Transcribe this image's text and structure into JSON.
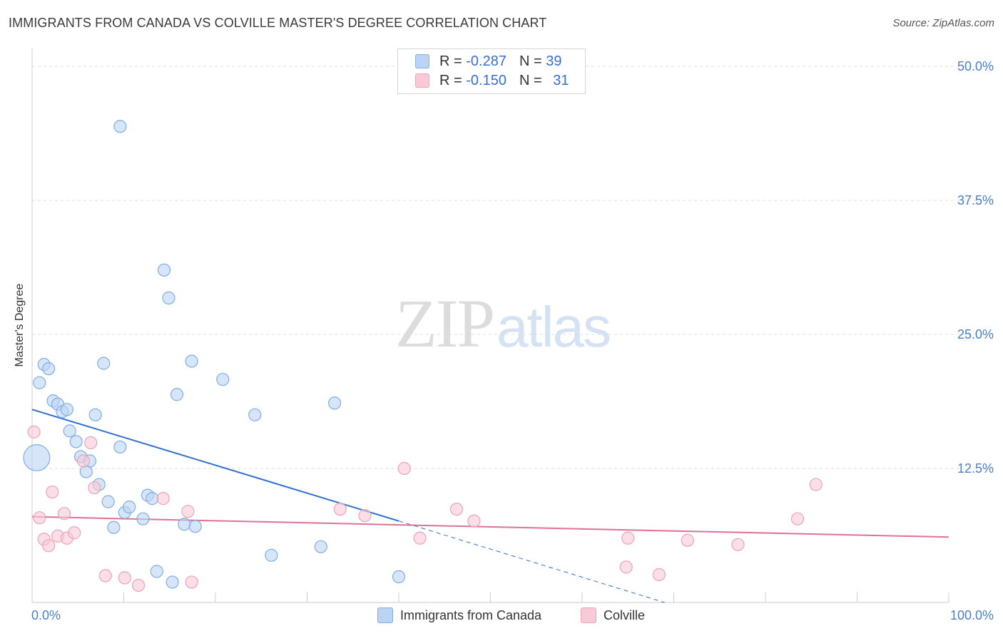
{
  "title": "IMMIGRANTS FROM CANADA VS COLVILLE MASTER'S DEGREE CORRELATION CHART",
  "source": "Source: ZipAtlas.com",
  "watermark": {
    "zip": "ZIP",
    "atlas": "atlas"
  },
  "colors": {
    "blue_fill": "#bcd4f3",
    "blue_stroke": "#7eaee3",
    "blue_line": "#2f6fcf",
    "pink_fill": "#f8c9d6",
    "pink_stroke": "#eea2b8",
    "pink_line": "#e0709a",
    "grid": "#dddddd",
    "axis_label": "#4a7fd0"
  },
  "legend": {
    "blue": {
      "r_label": "R = ",
      "r_value": "-0.287",
      "n_label": "N = ",
      "n_value": "39"
    },
    "pink": {
      "r_label": "R = ",
      "r_value": "-0.150",
      "n_label": "N = ",
      "n_value": "31"
    }
  },
  "bottom_legend": {
    "blue": "Immigrants from Canada",
    "pink": "Colville"
  },
  "chart_data": {
    "type": "scatter",
    "title": "IMMIGRANTS FROM CANADA VS COLVILLE MASTER'S DEGREE CORRELATION CHART",
    "xlabel": "",
    "ylabel": "Master's Degree",
    "xlim": [
      0,
      100
    ],
    "ylim": [
      0,
      50
    ],
    "x_tick_labels": [
      "0.0%",
      "100.0%"
    ],
    "y_ticks": [
      12.5,
      25.0,
      37.5,
      50.0
    ],
    "y_tick_labels": [
      "12.5%",
      "25.0%",
      "37.5%",
      "50.0%"
    ],
    "grid": true,
    "series": [
      {
        "name": "Immigrants from Canada",
        "color": "blue",
        "points": [
          {
            "x": 0.5,
            "y": 13.5,
            "size": 3
          },
          {
            "x": 0.8,
            "y": 20.5
          },
          {
            "x": 1.3,
            "y": 22.2
          },
          {
            "x": 1.8,
            "y": 21.8
          },
          {
            "x": 2.3,
            "y": 18.8
          },
          {
            "x": 2.8,
            "y": 18.5
          },
          {
            "x": 3.3,
            "y": 17.8
          },
          {
            "x": 3.8,
            "y": 18.0
          },
          {
            "x": 4.1,
            "y": 16.0
          },
          {
            "x": 4.8,
            "y": 15.0
          },
          {
            "x": 5.3,
            "y": 13.6
          },
          {
            "x": 5.9,
            "y": 12.2
          },
          {
            "x": 6.3,
            "y": 13.2
          },
          {
            "x": 6.9,
            "y": 17.5
          },
          {
            "x": 7.3,
            "y": 11.0
          },
          {
            "x": 7.8,
            "y": 22.3
          },
          {
            "x": 8.3,
            "y": 9.4
          },
          {
            "x": 8.9,
            "y": 7.0
          },
          {
            "x": 9.6,
            "y": 14.5
          },
          {
            "x": 10.1,
            "y": 8.4
          },
          {
            "x": 10.6,
            "y": 8.9
          },
          {
            "x": 9.6,
            "y": 44.4
          },
          {
            "x": 12.1,
            "y": 7.8
          },
          {
            "x": 12.6,
            "y": 10.0
          },
          {
            "x": 13.1,
            "y": 9.7
          },
          {
            "x": 13.6,
            "y": 2.9
          },
          {
            "x": 14.4,
            "y": 31.0
          },
          {
            "x": 14.9,
            "y": 28.4
          },
          {
            "x": 15.3,
            "y": 1.9
          },
          {
            "x": 15.8,
            "y": 19.4
          },
          {
            "x": 16.6,
            "y": 7.3
          },
          {
            "x": 17.4,
            "y": 22.5
          },
          {
            "x": 17.8,
            "y": 7.1
          },
          {
            "x": 20.8,
            "y": 20.8
          },
          {
            "x": 24.3,
            "y": 17.5
          },
          {
            "x": 26.1,
            "y": 4.4
          },
          {
            "x": 31.5,
            "y": 5.2
          },
          {
            "x": 33.0,
            "y": 18.6
          },
          {
            "x": 40.0,
            "y": 2.4
          }
        ],
        "trend": {
          "x0": 0,
          "y0": 18.0,
          "x1": 40.0,
          "y1": 7.6,
          "dashed_to_x": 69.0,
          "dashed_to_y": 0.0
        }
      },
      {
        "name": "Colville",
        "color": "pink",
        "points": [
          {
            "x": 0.2,
            "y": 15.9
          },
          {
            "x": 0.8,
            "y": 7.9
          },
          {
            "x": 1.3,
            "y": 5.9
          },
          {
            "x": 1.8,
            "y": 5.3
          },
          {
            "x": 2.2,
            "y": 10.3
          },
          {
            "x": 2.8,
            "y": 6.2
          },
          {
            "x": 3.5,
            "y": 8.3
          },
          {
            "x": 3.8,
            "y": 6.0
          },
          {
            "x": 4.6,
            "y": 6.5
          },
          {
            "x": 5.6,
            "y": 13.2
          },
          {
            "x": 6.4,
            "y": 14.9
          },
          {
            "x": 6.8,
            "y": 10.7
          },
          {
            "x": 8.0,
            "y": 2.5
          },
          {
            "x": 10.1,
            "y": 2.3
          },
          {
            "x": 11.6,
            "y": 1.6
          },
          {
            "x": 14.3,
            "y": 9.7
          },
          {
            "x": 17.0,
            "y": 8.5
          },
          {
            "x": 17.4,
            "y": 1.9
          },
          {
            "x": 33.6,
            "y": 8.7
          },
          {
            "x": 36.3,
            "y": 8.1
          },
          {
            "x": 40.6,
            "y": 12.5
          },
          {
            "x": 42.3,
            "y": 6.0
          },
          {
            "x": 46.3,
            "y": 8.7
          },
          {
            "x": 48.2,
            "y": 7.6
          },
          {
            "x": 64.8,
            "y": 3.3
          },
          {
            "x": 65.0,
            "y": 6.0
          },
          {
            "x": 68.4,
            "y": 2.6
          },
          {
            "x": 71.5,
            "y": 5.8
          },
          {
            "x": 77.0,
            "y": 5.4
          },
          {
            "x": 83.5,
            "y": 7.8
          },
          {
            "x": 85.5,
            "y": 11.0
          }
        ],
        "trend": {
          "x0": 0,
          "y0": 8.0,
          "x1": 100,
          "y1": 6.1
        }
      }
    ]
  }
}
